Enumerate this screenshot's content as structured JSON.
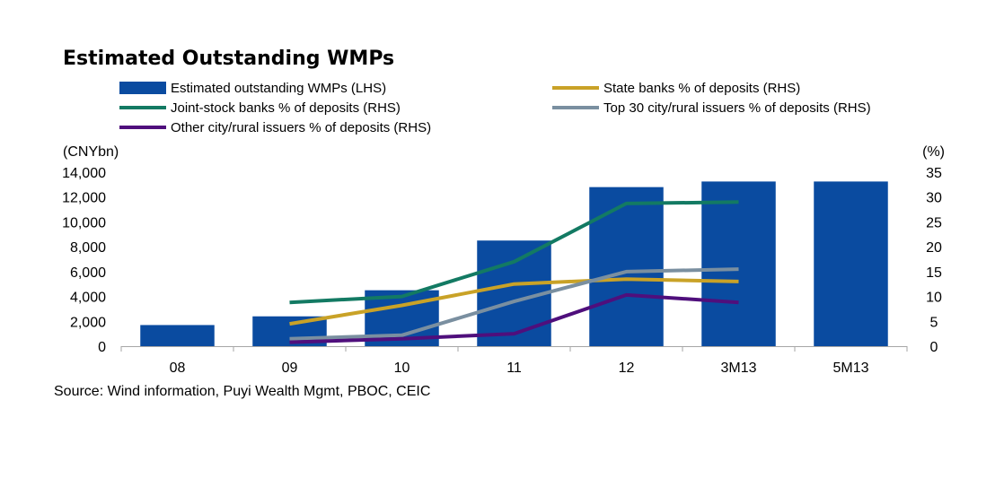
{
  "chart_data": {
    "type": "bar",
    "title": "Estimated Outstanding WMPs",
    "categories": [
      "08",
      "09",
      "10",
      "11",
      "12",
      "3M13",
      "5M13"
    ],
    "left_axis": {
      "unit": "(CNYbn)",
      "ylim": [
        0,
        14000
      ],
      "ticks": [
        "14,000",
        "12,000",
        "10,000",
        "8,000",
        "6,000",
        "4,000",
        "2,000",
        "0"
      ],
      "tick_values": [
        14000,
        12000,
        10000,
        8000,
        6000,
        4000,
        2000,
        0
      ]
    },
    "right_axis": {
      "unit": "(%)",
      "ylim": [
        0,
        35
      ],
      "ticks": [
        "35",
        "30",
        "25",
        "20",
        "15",
        "10",
        "5",
        "0"
      ],
      "tick_values": [
        35,
        30,
        25,
        20,
        15,
        10,
        5,
        0
      ]
    },
    "bars": {
      "name": "Estimated outstanding WMPs (LHS)",
      "color": "#0a4ba0",
      "values": [
        1700,
        2400,
        4500,
        8500,
        12800,
        13250,
        13250
      ]
    },
    "lines": [
      {
        "name": "State banks % of deposits (RHS)",
        "color": "#c9a227",
        "values": [
          null,
          4.5,
          8.2,
          12.5,
          13.5,
          13.0,
          null
        ]
      },
      {
        "name": "Joint-stock banks % of deposits (RHS)",
        "color": "#137a63",
        "values": [
          null,
          8.8,
          10.0,
          17.0,
          28.7,
          29.0,
          null
        ]
      },
      {
        "name": "Top 30 city/rural issuers % of deposits (RHS)",
        "color": "#7a8fa0",
        "values": [
          null,
          1.5,
          2.2,
          9.0,
          15.0,
          15.5,
          null
        ]
      },
      {
        "name": "Other city/rural issuers % of deposits (RHS)",
        "color": "#4f0f7c",
        "values": [
          null,
          0.8,
          1.5,
          2.5,
          10.3,
          8.8,
          null
        ]
      }
    ],
    "legend_order": [
      0,
      1,
      2,
      3,
      4
    ],
    "source": "Source: Wind information, Puyi Wealth Mgmt, PBOC, CEIC"
  }
}
